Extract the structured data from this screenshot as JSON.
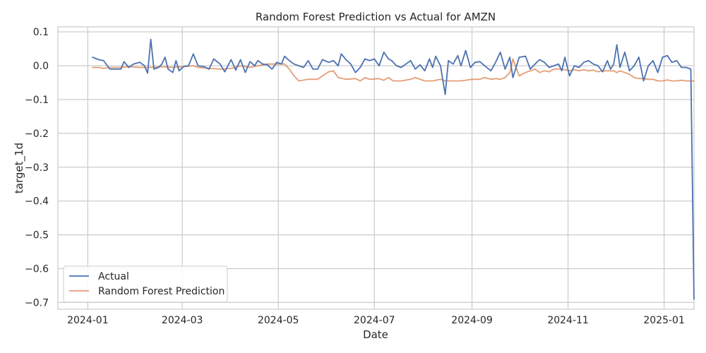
{
  "chart_data": {
    "type": "line",
    "title": "Random Forest Prediction vs Actual for AMZN",
    "xlabel": "Date",
    "ylabel": "target_1d",
    "xlim": [
      "2023-12-13",
      "2025-01-20"
    ],
    "ylim": [
      -0.72,
      0.115
    ],
    "x_ticks": [
      "2024-01-01",
      "2024-03-01",
      "2024-05-01",
      "2024-07-01",
      "2024-09-01",
      "2024-11-01",
      "2025-01-01"
    ],
    "x_tick_labels": [
      "2024-01",
      "2024-03",
      "2024-05",
      "2024-07",
      "2024-09",
      "2024-11",
      "2025-01"
    ],
    "y_ticks": [
      0.1,
      0.0,
      -0.1,
      -0.2,
      -0.3,
      -0.4,
      -0.5,
      -0.6,
      -0.7
    ],
    "y_tick_labels": [
      "0.1",
      "0.0",
      "−0.1",
      "−0.2",
      "−0.3",
      "−0.4",
      "−0.5",
      "−0.6",
      "−0.7"
    ],
    "grid": true,
    "legend_position": "lower-left",
    "series": [
      {
        "name": "Actual",
        "color": "#4c72b0",
        "points": [
          [
            "2024-01-04",
            0.025
          ],
          [
            "2024-01-08",
            0.018
          ],
          [
            "2024-01-11",
            0.015
          ],
          [
            "2024-01-15",
            -0.01
          ],
          [
            "2024-01-22",
            -0.01
          ],
          [
            "2024-01-24",
            0.012
          ],
          [
            "2024-01-27",
            -0.005
          ],
          [
            "2024-01-30",
            0.005
          ],
          [
            "2024-02-03",
            0.01
          ],
          [
            "2024-02-06",
            0.0
          ],
          [
            "2024-02-08",
            -0.022
          ],
          [
            "2024-02-10",
            0.078
          ],
          [
            "2024-02-12",
            -0.01
          ],
          [
            "2024-02-15",
            -0.005
          ],
          [
            "2024-02-17",
            0.005
          ],
          [
            "2024-02-19",
            0.025
          ],
          [
            "2024-02-21",
            -0.01
          ],
          [
            "2024-02-24",
            -0.02
          ],
          [
            "2024-02-26",
            0.015
          ],
          [
            "2024-02-28",
            -0.015
          ],
          [
            "2024-03-02",
            -0.002
          ],
          [
            "2024-03-05",
            0.0
          ],
          [
            "2024-03-08",
            0.035
          ],
          [
            "2024-03-11",
            0.0
          ],
          [
            "2024-03-15",
            -0.003
          ],
          [
            "2024-03-18",
            -0.01
          ],
          [
            "2024-03-21",
            0.02
          ],
          [
            "2024-03-25",
            0.005
          ],
          [
            "2024-03-28",
            -0.018
          ],
          [
            "2024-04-01",
            0.018
          ],
          [
            "2024-04-04",
            -0.013
          ],
          [
            "2024-04-07",
            0.018
          ],
          [
            "2024-04-10",
            -0.02
          ],
          [
            "2024-04-13",
            0.012
          ],
          [
            "2024-04-16",
            0.0
          ],
          [
            "2024-04-18",
            0.015
          ],
          [
            "2024-04-21",
            0.005
          ],
          [
            "2024-04-24",
            0.003
          ],
          [
            "2024-04-27",
            -0.01
          ],
          [
            "2024-04-30",
            0.01
          ],
          [
            "2024-05-03",
            0.005
          ],
          [
            "2024-05-05",
            0.028
          ],
          [
            "2024-05-08",
            0.015
          ],
          [
            "2024-05-11",
            0.005
          ],
          [
            "2024-05-14",
            0.0
          ],
          [
            "2024-05-17",
            -0.005
          ],
          [
            "2024-05-20",
            0.015
          ],
          [
            "2024-05-23",
            -0.01
          ],
          [
            "2024-05-26",
            -0.01
          ],
          [
            "2024-05-29",
            0.018
          ],
          [
            "2024-06-02",
            0.01
          ],
          [
            "2024-06-05",
            0.015
          ],
          [
            "2024-06-08",
            0.0
          ],
          [
            "2024-06-10",
            0.035
          ],
          [
            "2024-06-13",
            0.018
          ],
          [
            "2024-06-16",
            0.005
          ],
          [
            "2024-06-19",
            -0.02
          ],
          [
            "2024-06-22",
            -0.005
          ],
          [
            "2024-06-25",
            0.02
          ],
          [
            "2024-06-28",
            0.015
          ],
          [
            "2024-07-01",
            0.02
          ],
          [
            "2024-07-04",
            0.0
          ],
          [
            "2024-07-07",
            0.04
          ],
          [
            "2024-07-10",
            0.02
          ],
          [
            "2024-07-12",
            0.015
          ],
          [
            "2024-07-15",
            0.0
          ],
          [
            "2024-07-18",
            -0.005
          ],
          [
            "2024-07-21",
            0.005
          ],
          [
            "2024-07-24",
            0.015
          ],
          [
            "2024-07-27",
            -0.01
          ],
          [
            "2024-07-30",
            0.003
          ],
          [
            "2024-08-02",
            -0.015
          ],
          [
            "2024-08-05",
            0.02
          ],
          [
            "2024-08-07",
            -0.005
          ],
          [
            "2024-08-09",
            0.028
          ],
          [
            "2024-08-12",
            0.0
          ],
          [
            "2024-08-15",
            -0.085
          ],
          [
            "2024-08-17",
            0.015
          ],
          [
            "2024-08-20",
            0.005
          ],
          [
            "2024-08-23",
            0.03
          ],
          [
            "2024-08-25",
            0.0
          ],
          [
            "2024-08-28",
            0.045
          ],
          [
            "2024-08-31",
            -0.005
          ],
          [
            "2024-09-03",
            0.01
          ],
          [
            "2024-09-06",
            0.012
          ],
          [
            "2024-09-09",
            0.0
          ],
          [
            "2024-09-13",
            -0.015
          ],
          [
            "2024-09-16",
            0.01
          ],
          [
            "2024-09-19",
            0.04
          ],
          [
            "2024-09-22",
            -0.01
          ],
          [
            "2024-09-25",
            0.025
          ],
          [
            "2024-09-27",
            -0.035
          ],
          [
            "2024-10-01",
            0.025
          ],
          [
            "2024-10-05",
            0.028
          ],
          [
            "2024-10-08",
            -0.01
          ],
          [
            "2024-10-11",
            0.005
          ],
          [
            "2024-10-14",
            0.018
          ],
          [
            "2024-10-17",
            0.01
          ],
          [
            "2024-10-20",
            -0.005
          ],
          [
            "2024-10-23",
            0.0
          ],
          [
            "2024-10-26",
            0.005
          ],
          [
            "2024-10-28",
            -0.015
          ],
          [
            "2024-10-30",
            0.025
          ],
          [
            "2024-11-02",
            -0.03
          ],
          [
            "2024-11-05",
            0.0
          ],
          [
            "2024-11-08",
            -0.005
          ],
          [
            "2024-11-11",
            0.01
          ],
          [
            "2024-11-14",
            0.015
          ],
          [
            "2024-11-17",
            0.005
          ],
          [
            "2024-11-20",
            0.0
          ],
          [
            "2024-11-23",
            -0.018
          ],
          [
            "2024-11-26",
            0.015
          ],
          [
            "2024-11-28",
            -0.01
          ],
          [
            "2024-11-30",
            0.005
          ],
          [
            "2024-12-02",
            0.062
          ],
          [
            "2024-12-04",
            -0.005
          ],
          [
            "2024-12-07",
            0.04
          ],
          [
            "2024-12-10",
            -0.015
          ],
          [
            "2024-12-13",
            0.0
          ],
          [
            "2024-12-16",
            0.025
          ],
          [
            "2024-12-19",
            -0.045
          ],
          [
            "2024-12-22",
            0.0
          ],
          [
            "2024-12-25",
            0.015
          ],
          [
            "2024-12-28",
            -0.02
          ],
          [
            "2024-12-31",
            0.025
          ],
          [
            "2025-01-03",
            0.03
          ],
          [
            "2025-01-06",
            0.01
          ],
          [
            "2025-01-09",
            0.015
          ],
          [
            "2025-01-12",
            -0.005
          ],
          [
            "2025-01-15",
            -0.005
          ],
          [
            "2025-01-18",
            -0.01
          ],
          [
            "2025-01-20",
            -0.69
          ]
        ]
      },
      {
        "name": "Random Forest Prediction",
        "color": "#dd8452",
        "points": [
          [
            "2024-01-04",
            -0.005
          ],
          [
            "2024-01-08",
            -0.005
          ],
          [
            "2024-01-11",
            -0.008
          ],
          [
            "2024-01-15",
            -0.005
          ],
          [
            "2024-01-22",
            -0.005
          ],
          [
            "2024-01-27",
            -0.003
          ],
          [
            "2024-02-03",
            -0.005
          ],
          [
            "2024-02-10",
            -0.005
          ],
          [
            "2024-02-17",
            -0.003
          ],
          [
            "2024-02-24",
            -0.005
          ],
          [
            "2024-03-02",
            -0.003
          ],
          [
            "2024-03-08",
            0.0
          ],
          [
            "2024-03-11",
            -0.005
          ],
          [
            "2024-03-18",
            -0.008
          ],
          [
            "2024-03-25",
            -0.01
          ],
          [
            "2024-04-01",
            -0.008
          ],
          [
            "2024-04-07",
            0.0
          ],
          [
            "2024-04-13",
            -0.005
          ],
          [
            "2024-04-18",
            0.0
          ],
          [
            "2024-04-24",
            0.005
          ],
          [
            "2024-04-30",
            0.005
          ],
          [
            "2024-05-05",
            0.005
          ],
          [
            "2024-05-08",
            -0.01
          ],
          [
            "2024-05-11",
            -0.03
          ],
          [
            "2024-05-14",
            -0.045
          ],
          [
            "2024-05-20",
            -0.04
          ],
          [
            "2024-05-26",
            -0.04
          ],
          [
            "2024-05-29",
            -0.03
          ],
          [
            "2024-06-02",
            -0.018
          ],
          [
            "2024-06-05",
            -0.015
          ],
          [
            "2024-06-08",
            -0.035
          ],
          [
            "2024-06-13",
            -0.04
          ],
          [
            "2024-06-19",
            -0.038
          ],
          [
            "2024-06-22",
            -0.045
          ],
          [
            "2024-06-25",
            -0.035
          ],
          [
            "2024-06-28",
            -0.04
          ],
          [
            "2024-07-04",
            -0.038
          ],
          [
            "2024-07-07",
            -0.043
          ],
          [
            "2024-07-10",
            -0.035
          ],
          [
            "2024-07-13",
            -0.045
          ],
          [
            "2024-07-18",
            -0.045
          ],
          [
            "2024-07-24",
            -0.04
          ],
          [
            "2024-07-27",
            -0.035
          ],
          [
            "2024-08-02",
            -0.045
          ],
          [
            "2024-08-07",
            -0.045
          ],
          [
            "2024-08-12",
            -0.04
          ],
          [
            "2024-08-15",
            -0.045
          ],
          [
            "2024-08-20",
            -0.045
          ],
          [
            "2024-08-25",
            -0.045
          ],
          [
            "2024-09-01",
            -0.04
          ],
          [
            "2024-09-06",
            -0.04
          ],
          [
            "2024-09-09",
            -0.035
          ],
          [
            "2024-09-13",
            -0.04
          ],
          [
            "2024-09-16",
            -0.038
          ],
          [
            "2024-09-19",
            -0.04
          ],
          [
            "2024-09-22",
            -0.035
          ],
          [
            "2024-09-25",
            -0.02
          ],
          [
            "2024-09-27",
            0.02
          ],
          [
            "2024-10-01",
            -0.03
          ],
          [
            "2024-10-05",
            -0.02
          ],
          [
            "2024-10-08",
            -0.015
          ],
          [
            "2024-10-11",
            -0.01
          ],
          [
            "2024-10-14",
            -0.02
          ],
          [
            "2024-10-17",
            -0.015
          ],
          [
            "2024-10-20",
            -0.018
          ],
          [
            "2024-10-23",
            -0.01
          ],
          [
            "2024-10-28",
            -0.01
          ],
          [
            "2024-11-02",
            -0.015
          ],
          [
            "2024-11-05",
            -0.012
          ],
          [
            "2024-11-08",
            -0.015
          ],
          [
            "2024-11-11",
            -0.012
          ],
          [
            "2024-11-14",
            -0.015
          ],
          [
            "2024-11-17",
            -0.013
          ],
          [
            "2024-11-20",
            -0.018
          ],
          [
            "2024-11-23",
            -0.015
          ],
          [
            "2024-11-26",
            -0.015
          ],
          [
            "2024-11-30",
            -0.015
          ],
          [
            "2024-12-02",
            -0.02
          ],
          [
            "2024-12-04",
            -0.015
          ],
          [
            "2024-12-07",
            -0.02
          ],
          [
            "2024-12-10",
            -0.025
          ],
          [
            "2024-12-13",
            -0.035
          ],
          [
            "2024-12-16",
            -0.038
          ],
          [
            "2024-12-19",
            -0.038
          ],
          [
            "2024-12-22",
            -0.04
          ],
          [
            "2024-12-25",
            -0.04
          ],
          [
            "2024-12-28",
            -0.045
          ],
          [
            "2024-12-31",
            -0.045
          ],
          [
            "2025-01-03",
            -0.042
          ],
          [
            "2025-01-06",
            -0.045
          ],
          [
            "2025-01-09",
            -0.045
          ],
          [
            "2025-01-12",
            -0.043
          ],
          [
            "2025-01-15",
            -0.045
          ],
          [
            "2025-01-20",
            -0.045
          ]
        ]
      }
    ]
  }
}
